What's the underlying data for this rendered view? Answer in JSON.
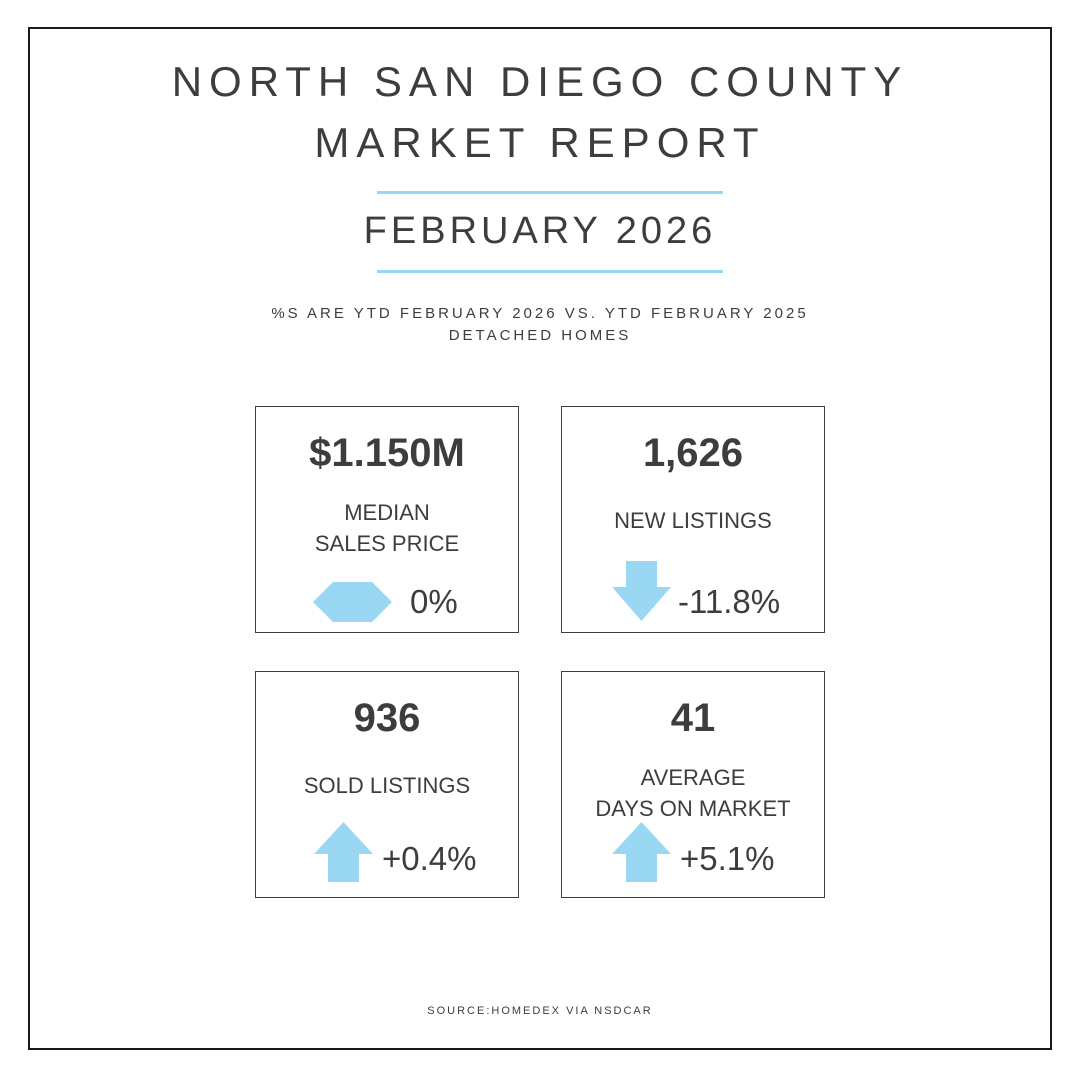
{
  "header": {
    "title_line_1": "NORTH SAN DIEGO COUNTY",
    "title_line_2": "MARKET REPORT",
    "month": "FEBRUARY 2026",
    "subtitle_line_1": "%S ARE YTD FEBRUARY 2026 VS. YTD FEBRUARY 2025",
    "subtitle_line_2": "DETACHED HOMES"
  },
  "accent_color": "#9ad7f2",
  "stats": [
    {
      "value": "$1.150M",
      "label_line_1": "MEDIAN",
      "label_line_2": "SALES PRICE",
      "change": "0%",
      "icon": "neutral-hexagon-icon"
    },
    {
      "value": "1,626",
      "label_line_1": "NEW LISTINGS",
      "change": "-11.8%",
      "icon": "arrow-down-icon"
    },
    {
      "value": "936",
      "label_line_1": "SOLD LISTINGS",
      "change": "+0.4%",
      "icon": "arrow-up-icon"
    },
    {
      "value": "41",
      "label_line_1": "AVERAGE",
      "label_line_2": "DAYS ON MARKET",
      "change": "+5.1%",
      "icon": "arrow-up-icon"
    }
  ],
  "footer": {
    "source": "SOURCE:HOMEDEX VIA NSDCAR"
  }
}
